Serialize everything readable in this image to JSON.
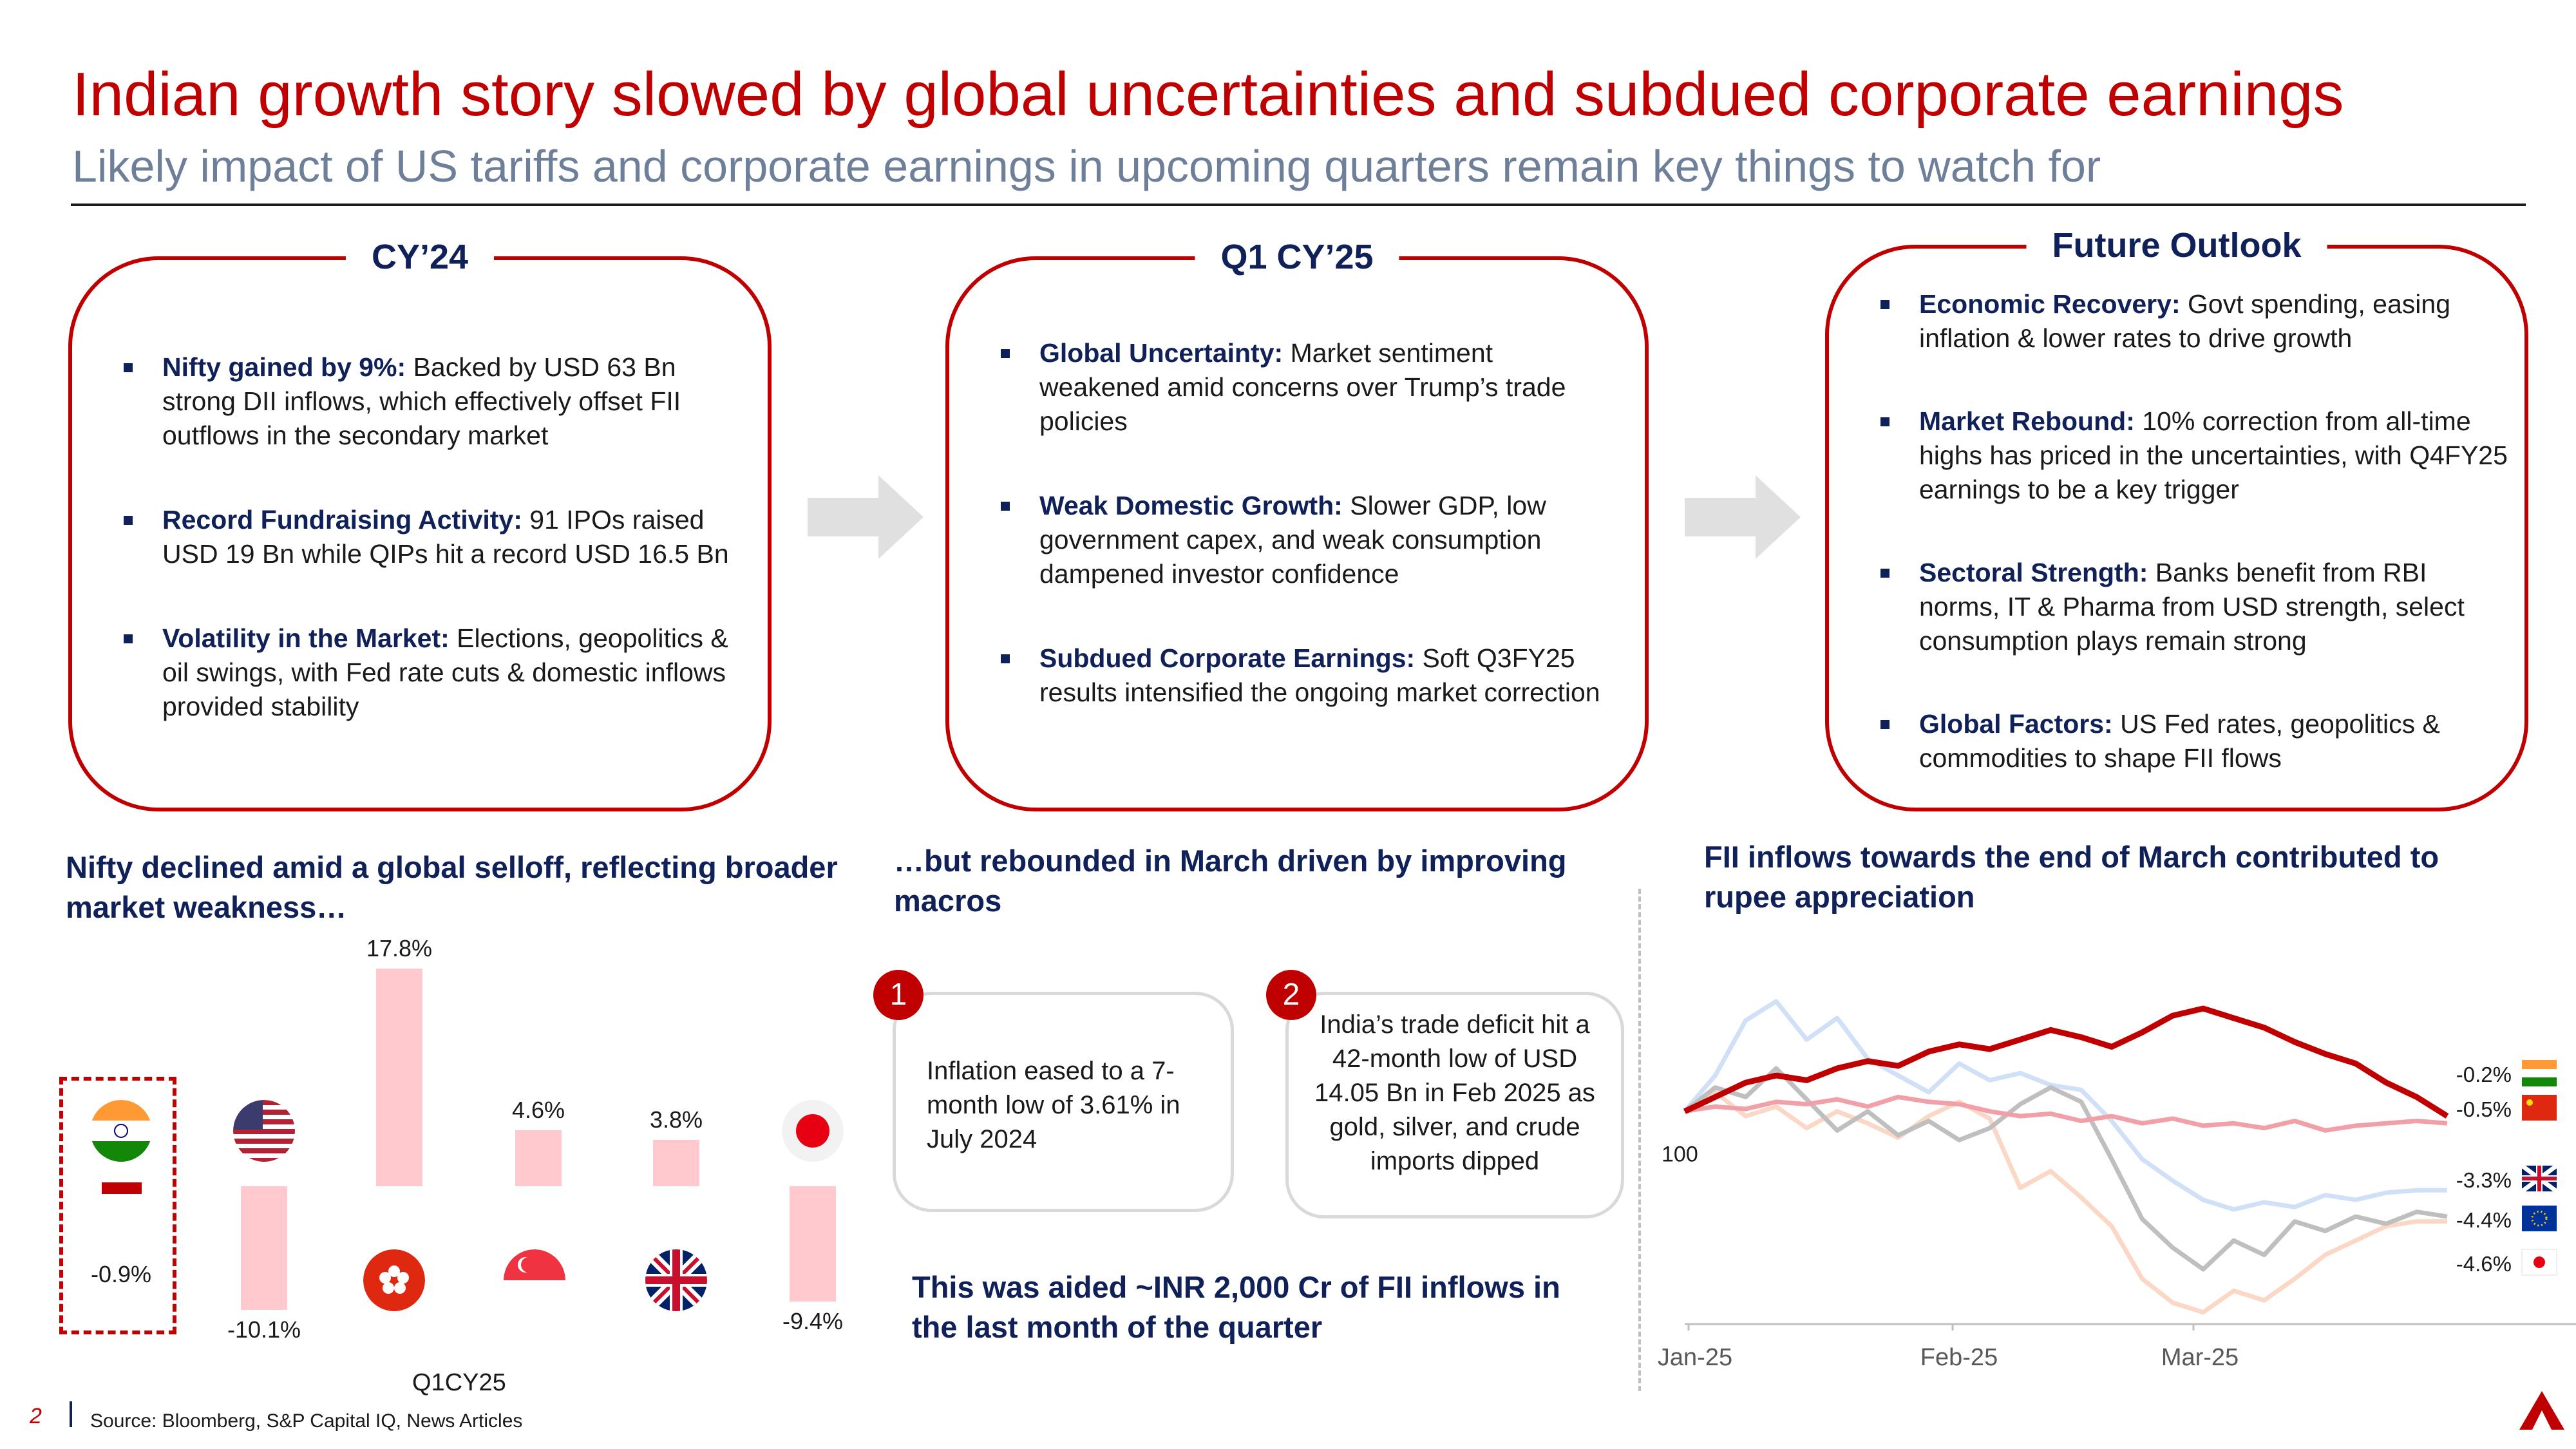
{
  "header": {
    "title": "Indian growth story slowed by global uncertainties and subdued corporate earnings",
    "subtitle": "Likely impact of US tariffs and corporate earnings in upcoming quarters remain key things to watch for"
  },
  "panels": [
    {
      "title": "CY’24",
      "bullets": [
        {
          "bold": "Nifty gained by 9%:",
          "text": " Backed by USD 63 Bn strong DII inflows, which effectively offset FII outflows in the secondary market"
        },
        {
          "bold": "Record Fundraising Activity:",
          "text": " 91 IPOs raised USD 19 Bn while QIPs hit a record USD 16.5 Bn"
        },
        {
          "bold": "Volatility in the Market:",
          "text": " Elections, geopolitics & oil swings, with Fed rate cuts & domestic inflows provided stability"
        }
      ]
    },
    {
      "title": "Q1 CY’25",
      "bullets": [
        {
          "bold": "Global Uncertainty:",
          "text": " Market sentiment weakened amid concerns over Trump’s trade policies"
        },
        {
          "bold": "Weak Domestic Growth:",
          "text": " Slower GDP, low government capex, and weak consumption dampened investor confidence"
        },
        {
          "bold": "Subdued Corporate Earnings:",
          "text": " Soft Q3FY25 results intensified the ongoing market correction"
        }
      ]
    },
    {
      "title": "Future Outlook",
      "bullets": [
        {
          "bold": "Economic Recovery:",
          "text": " Govt spending, easing inflation & lower rates to drive growth"
        },
        {
          "bold": "Market Rebound:",
          "text": " 10% correction from all-time highs has priced in the uncertainties, with Q4FY25 earnings to be a key trigger"
        },
        {
          "bold": "Sectoral Strength:",
          "text": " Banks benefit from RBI norms, IT & Pharma from USD strength, select consumption plays remain strong"
        },
        {
          "bold": "Global Factors:",
          "text": " US Fed rates, geopolitics & commodities to shape FII flows"
        }
      ]
    }
  ],
  "left_section": {
    "heading": "Nifty declined amid a global selloff, reflecting broader market weakness…",
    "xlabel": "Q1CY25"
  },
  "middle_section": {
    "heading": "…but rebounded in March driven by improving macros",
    "callouts": [
      {
        "num": "1",
        "text": "Inflation eased to a 7-month low of 3.61% in July 2024"
      },
      {
        "num": "2",
        "text": "India’s trade deficit hit a 42-month low of USD 14.05 Bn in Feb 2025 as gold, silver, and crude imports dipped"
      }
    ],
    "footnote": "This was aided ~INR 2,000 Cr of FII inflows in the last month of the quarter"
  },
  "right_section": {
    "heading": "FII inflows towards the end of March contributed to rupee appreciation",
    "ylabel_tick": "100",
    "x_ticks": [
      "Jan-25",
      "Feb-25",
      "Mar-25"
    ]
  },
  "chart_data": [
    {
      "type": "bar",
      "categories": [
        "India",
        "US",
        "Hong Kong",
        "Singapore",
        "UK",
        "Japan"
      ],
      "values": [
        -0.9,
        -10.1,
        17.8,
        4.6,
        3.8,
        -9.4
      ],
      "labels": [
        "-0.9%",
        "-10.1%",
        "17.8%",
        "4.6%",
        "3.8%",
        "-9.4%"
      ],
      "xlabel": "Q1CY25",
      "highlight": "India",
      "colors": {
        "bar": "#ffc9ce",
        "highlight_box": "#c00000"
      }
    },
    {
      "type": "line",
      "x_ticks": [
        "Jan-25",
        "Feb-25",
        "Mar-25"
      ],
      "y_reference": 100,
      "series": [
        {
          "country": "India",
          "end_label": "-0.2%",
          "color": "#c00000",
          "emphasis": true,
          "values": [
            100,
            100.6,
            101.2,
            101.5,
            101.3,
            101.8,
            102.1,
            101.9,
            102.5,
            102.8,
            102.6,
            103.0,
            103.4,
            103.1,
            102.7,
            103.3,
            104.0,
            104.3,
            103.9,
            103.5,
            102.9,
            102.4,
            102.0,
            101.2,
            100.6,
            99.8
          ]
        },
        {
          "country": "China",
          "end_label": "-0.5%",
          "color": "#f2a0a8",
          "emphasis": false,
          "values": [
            100,
            100.2,
            100.1,
            100.4,
            100.3,
            100.5,
            100.2,
            100.6,
            100.4,
            100.3,
            100.0,
            99.8,
            99.9,
            99.6,
            99.8,
            99.5,
            99.7,
            99.4,
            99.5,
            99.3,
            99.6,
            99.2,
            99.4,
            99.5,
            99.6,
            99.5
          ]
        },
        {
          "country": "UK",
          "end_label": "-3.3%",
          "color": "#cfe0f7",
          "emphasis": false,
          "values": [
            100,
            101.5,
            103.8,
            104.6,
            103.0,
            103.9,
            102.2,
            101.5,
            100.8,
            102.0,
            101.3,
            101.6,
            101.1,
            100.9,
            99.6,
            98.0,
            97.1,
            96.3,
            95.9,
            96.2,
            96.0,
            96.5,
            96.3,
            96.6,
            96.7,
            96.7
          ]
        },
        {
          "country": "EU",
          "end_label": "-4.4%",
          "color": "#bfbfbf",
          "emphasis": false,
          "values": [
            100,
            101.0,
            100.6,
            101.8,
            100.5,
            99.2,
            100.0,
            99.0,
            99.6,
            98.8,
            99.3,
            100.3,
            101.0,
            100.4,
            98.0,
            95.5,
            94.3,
            93.4,
            94.6,
            94.0,
            95.4,
            95.0,
            95.6,
            95.3,
            95.8,
            95.6
          ]
        },
        {
          "country": "Japan",
          "end_label": "-4.6%",
          "color": "#fbd8c6",
          "emphasis": false,
          "values": [
            100,
            100.8,
            99.8,
            100.2,
            99.3,
            100.0,
            99.5,
            98.9,
            99.8,
            100.4,
            99.7,
            96.8,
            97.5,
            96.4,
            95.2,
            93.0,
            92.0,
            91.6,
            92.5,
            92.1,
            93.0,
            94.0,
            94.6,
            95.2,
            95.4,
            95.4
          ]
        }
      ]
    }
  ],
  "footer": {
    "page": "2",
    "source": "Source: Bloomberg, S&P Capital IQ, News Articles"
  }
}
